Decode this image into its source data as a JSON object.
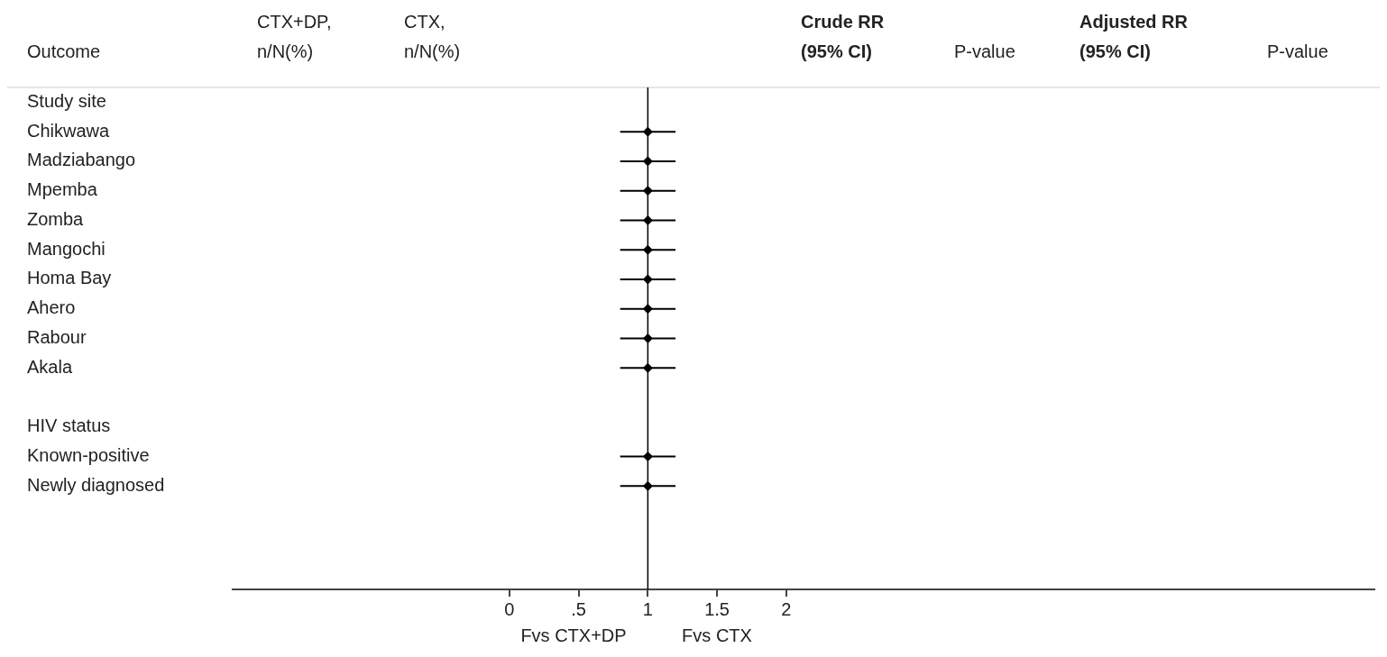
{
  "chart_data": {
    "type": "scatter",
    "orientation": "horizontal",
    "marker": "diamond",
    "color": "#000000",
    "grid": false,
    "legend": false,
    "categories": [
      "Study site",
      "Chikwawa",
      "Madziabango",
      "Mpemba",
      "Zomba",
      "Mangochi",
      "Homa Bay",
      "Ahero",
      "Rabour",
      "Akala",
      null,
      "HIV status",
      "Known-positive",
      "Newly diagnosed",
      null,
      null,
      null
    ],
    "values": [
      null,
      1,
      1,
      1,
      1,
      1,
      1,
      1,
      1,
      1,
      null,
      null,
      1,
      1,
      null,
      null,
      null
    ],
    "errors": [
      null,
      [
        0.8,
        1.2
      ],
      [
        0.8,
        1.2
      ],
      [
        0.8,
        1.2
      ],
      [
        0.8,
        1.2
      ],
      [
        0.8,
        1.2
      ],
      [
        0.8,
        1.2
      ],
      [
        0.8,
        1.2
      ],
      [
        0.8,
        1.2
      ],
      [
        0.8,
        1.2
      ],
      null,
      null,
      [
        0.8,
        1.2
      ],
      [
        0.8,
        1.2
      ],
      null,
      null,
      null
    ],
    "xlim": [
      -2,
      6.25
    ],
    "xticks": [
      0,
      {
        "value": 0.5,
        "label": ".5"
      },
      1,
      1.5,
      2
    ],
    "ref_lines": [
      {
        "axis": "x",
        "value": 1,
        "color": "#000000"
      }
    ],
    "annotations": [
      "Outcome",
      "CTX+DP,\nn/N(%)",
      "CTX,\nn/N(%)",
      "Crude RR\n(95% CI)",
      "P-value",
      "Adjusted RR\n(95% CI)",
      "P-value",
      "Fvs CTX+DP",
      "Fvs CTX"
    ]
  }
}
